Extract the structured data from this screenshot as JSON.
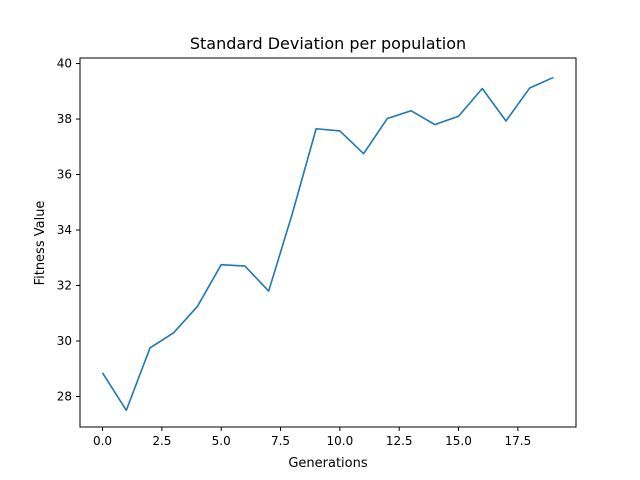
{
  "chart_data": {
    "type": "line",
    "title": "Standard Deviation per population",
    "xlabel": "Generations",
    "ylabel": "Fitness Value",
    "xlim": [
      -0.95,
      19.95
    ],
    "ylim": [
      26.9,
      40.2
    ],
    "xticks": [
      0.0,
      2.5,
      5.0,
      7.5,
      10.0,
      12.5,
      15.0,
      17.5
    ],
    "xtick_labels": [
      "0.0",
      "2.5",
      "5.0",
      "7.5",
      "10.0",
      "12.5",
      "15.0",
      "17.5"
    ],
    "yticks": [
      28,
      30,
      32,
      34,
      36,
      38,
      40
    ],
    "ytick_labels": [
      "28",
      "30",
      "32",
      "34",
      "36",
      "38",
      "40"
    ],
    "grid": false,
    "series": [
      {
        "color": "#1f77b4",
        "x": [
          0,
          1,
          2,
          3,
          4,
          5,
          6,
          7,
          8,
          9,
          10,
          11,
          12,
          13,
          14,
          15,
          16,
          17,
          18,
          19
        ],
        "values": [
          28.85,
          27.5,
          29.75,
          30.3,
          31.25,
          32.75,
          32.7,
          31.8,
          34.6,
          37.65,
          37.57,
          36.75,
          38.02,
          38.3,
          37.8,
          38.1,
          39.1,
          37.93,
          39.12,
          39.5
        ]
      }
    ]
  }
}
